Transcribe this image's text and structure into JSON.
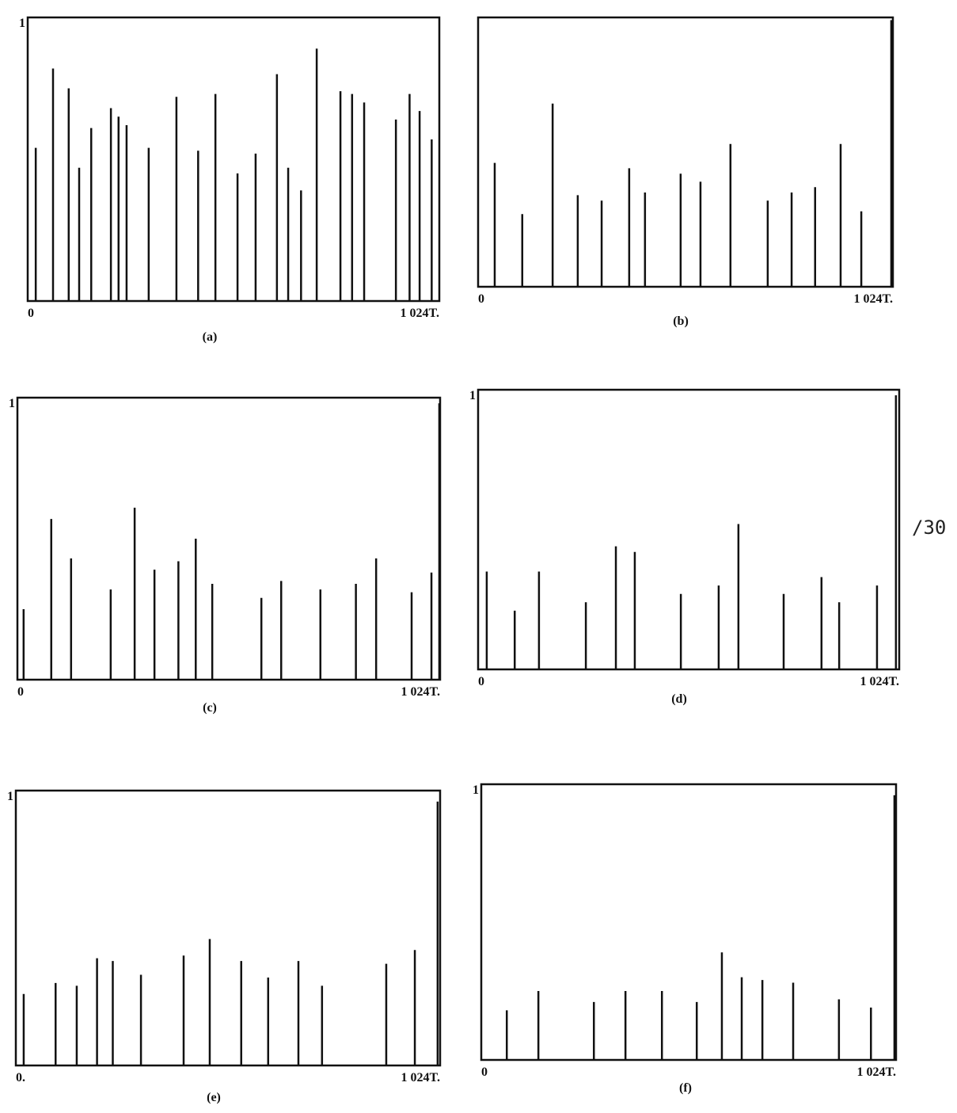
{
  "page_number": "/30",
  "chart_data": [
    {
      "type": "bar",
      "caption": "(a)",
      "xlim": [
        0,
        1024
      ],
      "ylim": [
        0,
        1
      ],
      "yticks": [
        1
      ],
      "xticks": [
        0,
        {
          "value": 1024,
          "label": "1 024T."
        }
      ],
      "color": "#111111",
      "x": [
        20,
        63,
        102,
        128,
        158,
        207,
        226,
        246,
        301,
        370,
        424,
        467,
        522,
        567,
        620,
        648,
        680,
        719,
        778,
        807,
        837,
        916,
        950,
        975,
        1005
      ],
      "values": [
        0.54,
        0.82,
        0.75,
        0.47,
        0.61,
        0.68,
        0.65,
        0.62,
        0.54,
        0.72,
        0.53,
        0.73,
        0.45,
        0.52,
        0.8,
        0.47,
        0.39,
        0.89,
        0.74,
        0.73,
        0.7,
        0.64,
        0.73,
        0.67,
        0.57
      ]
    },
    {
      "type": "bar",
      "caption": "(b)",
      "xlim": [
        0,
        1024
      ],
      "ylim": [
        0,
        1
      ],
      "yticks": [],
      "xticks": [
        0,
        {
          "value": 1024,
          "label": "1 024T."
        }
      ],
      "color": "#111111",
      "x": [
        41,
        109,
        184,
        246,
        305,
        373,
        412,
        500,
        549,
        623,
        715,
        774,
        832,
        895,
        946,
        1020
      ],
      "values": [
        0.46,
        0.27,
        0.68,
        0.34,
        0.32,
        0.44,
        0.35,
        0.42,
        0.39,
        0.53,
        0.32,
        0.35,
        0.37,
        0.53,
        0.28,
        0.99
      ]
    },
    {
      "type": "bar",
      "caption": "(c)",
      "xlim": [
        0,
        1024
      ],
      "ylim": [
        0,
        1
      ],
      "yticks": [
        1
      ],
      "xticks": [
        0,
        {
          "value": 1024,
          "label": "1 024T."
        }
      ],
      "color": "#111111",
      "x": [
        15,
        82,
        130,
        226,
        284,
        332,
        390,
        432,
        472,
        591,
        639,
        734,
        820,
        869,
        955,
        1003,
        1022
      ],
      "values": [
        0.25,
        0.57,
        0.43,
        0.32,
        0.61,
        0.39,
        0.42,
        0.5,
        0.34,
        0.29,
        0.35,
        0.32,
        0.34,
        0.43,
        0.31,
        0.38,
        0.98
      ]
    },
    {
      "type": "bar",
      "caption": "(d)",
      "xlim": [
        0,
        1024
      ],
      "ylim": [
        0,
        1
      ],
      "yticks": [
        1
      ],
      "xticks": [
        0,
        {
          "value": 1024,
          "label": "1 024T."
        }
      ],
      "color": "#111111",
      "x": [
        21,
        89,
        148,
        262,
        335,
        381,
        493,
        585,
        633,
        743,
        835,
        878,
        970,
        1016
      ],
      "values": [
        0.35,
        0.21,
        0.35,
        0.24,
        0.44,
        0.42,
        0.27,
        0.3,
        0.52,
        0.27,
        0.33,
        0.24,
        0.3,
        0.98
      ]
    },
    {
      "type": "bar",
      "caption": "(e)",
      "xlim": [
        0,
        1024
      ],
      "ylim": [
        0,
        1
      ],
      "yticks": [
        1
      ],
      "xticks": [
        {
          "value": 0,
          "label": "0."
        },
        {
          "value": 1024,
          "label": "1 024T."
        }
      ],
      "color": "#111111",
      "x": [
        19,
        96,
        147,
        196,
        234,
        302,
        405,
        468,
        544,
        609,
        682,
        739,
        894,
        963,
        1018
      ],
      "values": [
        0.26,
        0.3,
        0.29,
        0.39,
        0.38,
        0.33,
        0.4,
        0.46,
        0.38,
        0.32,
        0.38,
        0.29,
        0.37,
        0.42,
        0.96
      ]
    },
    {
      "type": "bar",
      "caption": "(f)",
      "xlim": [
        0,
        1024
      ],
      "ylim": [
        0,
        1
      ],
      "yticks": [
        1
      ],
      "xticks": [
        0,
        {
          "value": 1024,
          "label": "1 024T."
        }
      ],
      "color": "#111111",
      "x": [
        63,
        141,
        278,
        356,
        446,
        532,
        594,
        643,
        694,
        770,
        883,
        962,
        1020
      ],
      "values": [
        0.18,
        0.25,
        0.21,
        0.25,
        0.25,
        0.21,
        0.39,
        0.3,
        0.29,
        0.28,
        0.22,
        0.19,
        0.96
      ]
    }
  ]
}
